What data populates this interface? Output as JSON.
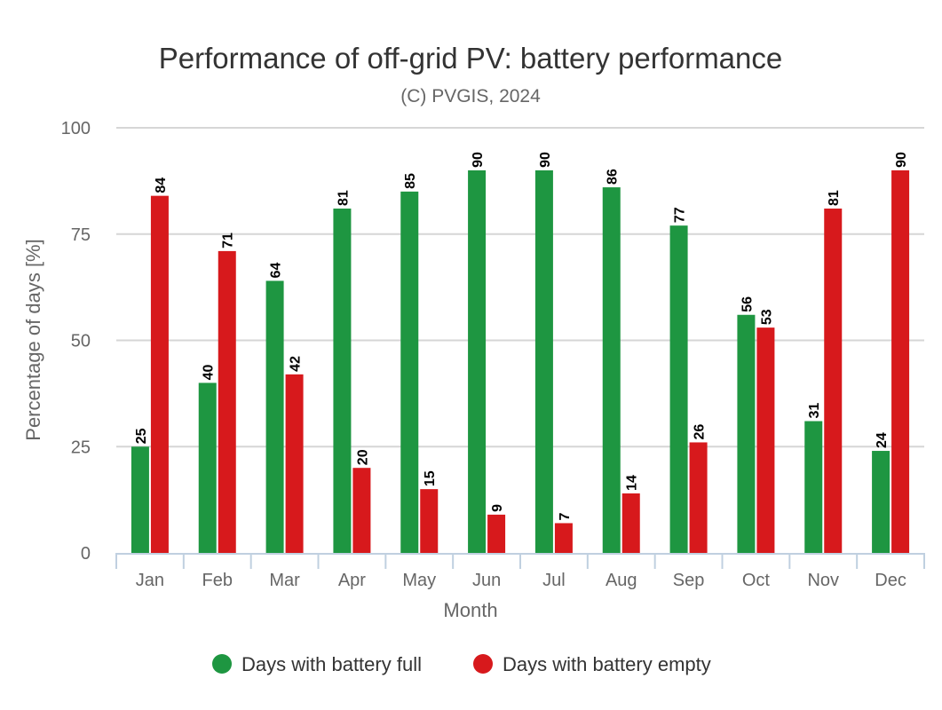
{
  "chart_data": {
    "type": "bar",
    "title": "Performance of off-grid PV: battery performance",
    "subtitle": "(C) PVGIS, 2024",
    "xlabel": "Month",
    "ylabel": "Percentage of days [%]",
    "ylim": [
      0,
      100
    ],
    "yticks": [
      0,
      25,
      50,
      75,
      100
    ],
    "grid": true,
    "legend_position": "bottom-center",
    "categories": [
      "Jan",
      "Feb",
      "Mar",
      "Apr",
      "May",
      "Jun",
      "Jul",
      "Aug",
      "Sep",
      "Oct",
      "Nov",
      "Dec"
    ],
    "series": [
      {
        "name": "Days with battery full",
        "color": "#1e9641",
        "values": [
          25,
          40,
          64,
          81,
          85,
          90,
          90,
          86,
          77,
          56,
          31,
          24
        ]
      },
      {
        "name": "Days with battery empty",
        "color": "#d7191c",
        "values": [
          84,
          71,
          42,
          20,
          15,
          9,
          7,
          14,
          26,
          53,
          81,
          90
        ]
      }
    ]
  }
}
